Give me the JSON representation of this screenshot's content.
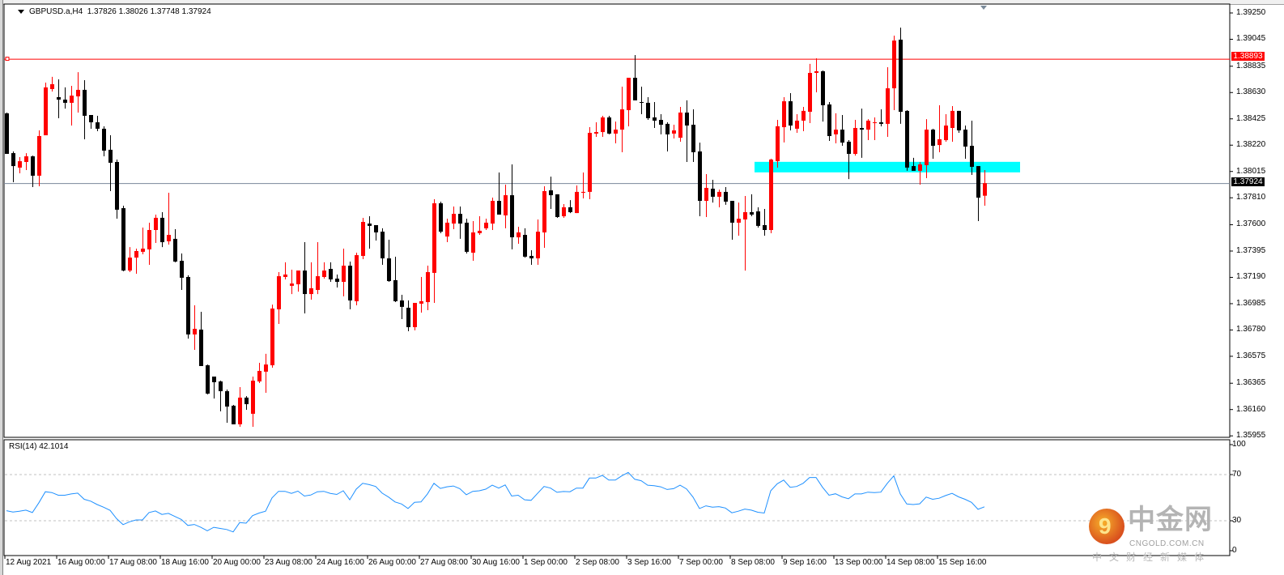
{
  "header": {
    "symbol": "GBPUSD.a,H4",
    "open": "1.37826",
    "high": "1.38026",
    "low": "1.37748",
    "close": "1.37924"
  },
  "rsi": {
    "title": "RSI(14) 42.1014",
    "levels": [
      70,
      30
    ],
    "axis_labels": [
      "100",
      "70",
      "30",
      "0"
    ]
  },
  "price_lines": {
    "resistance": {
      "label": "1.38893",
      "value": 1.38893,
      "color": "#ff0000"
    },
    "bid": {
      "label": "1.37924",
      "value": 1.37924,
      "color": "#000000"
    }
  },
  "zone": {
    "from": 1.38008,
    "to": 1.3809,
    "color": "#00ffff",
    "start_bar": 116,
    "end_bar": 157
  },
  "colors": {
    "bull": "#ff0000",
    "bear": "#000000",
    "rsi": "#1e90ff",
    "grid": "#c0c0c0"
  },
  "logo": {
    "name": "中金网",
    "url": "CNGOLD.COM.CN",
    "tagline": "中文财经新媒体"
  },
  "chart_data": {
    "type": "candlestick",
    "title": "GBPUSD.a,H4",
    "timeframe": "H4",
    "ylim": [
      1.35955,
      1.3925
    ],
    "y_ticks": [
      "1.39250",
      "1.39045",
      "1.38835",
      "1.38630",
      "1.38425",
      "1.38220",
      "1.38015",
      "1.37810",
      "1.37600",
      "1.37395",
      "1.37190",
      "1.36985",
      "1.36780",
      "1.36575",
      "1.36365",
      "1.36160",
      "1.35955"
    ],
    "x_ticks": [
      {
        "bar": 0,
        "label": "12 Aug 2021"
      },
      {
        "bar": 8,
        "label": "16 Aug 00:00"
      },
      {
        "bar": 16,
        "label": "17 Aug 08:00"
      },
      {
        "bar": 24,
        "label": "18 Aug 16:00"
      },
      {
        "bar": 32,
        "label": "20 Aug 00:00"
      },
      {
        "bar": 40,
        "label": "23 Aug 08:00"
      },
      {
        "bar": 48,
        "label": "24 Aug 16:00"
      },
      {
        "bar": 56,
        "label": "26 Aug 00:00"
      },
      {
        "bar": 64,
        "label": "27 Aug 08:00"
      },
      {
        "bar": 72,
        "label": "30 Aug 16:00"
      },
      {
        "bar": 80,
        "label": "1 Sep 00:00"
      },
      {
        "bar": 88,
        "label": "2 Sep 08:00"
      },
      {
        "bar": 96,
        "label": "3 Sep 16:00"
      },
      {
        "bar": 104,
        "label": "7 Sep 00:00"
      },
      {
        "bar": 112,
        "label": "8 Sep 08:00"
      },
      {
        "bar": 120,
        "label": "9 Sep 16:00"
      },
      {
        "bar": 128,
        "label": "13 Sep 00:00"
      },
      {
        "bar": 136,
        "label": "14 Sep 08:00"
      },
      {
        "bar": 144,
        "label": "15 Sep 16:00"
      }
    ],
    "ohlc_fields": [
      "open",
      "high",
      "low",
      "close"
    ],
    "ohlc": [
      [
        1.38468,
        1.38474,
        1.38152,
        1.38152
      ],
      [
        1.38158,
        1.38171,
        1.37931,
        1.38057
      ],
      [
        1.38045,
        1.38127,
        1.38001,
        1.38095
      ],
      [
        1.38089,
        1.38158,
        1.38026,
        1.38133
      ],
      [
        1.38133,
        1.38139,
        1.37893,
        1.37982
      ],
      [
        1.37982,
        1.38335,
        1.379,
        1.38291
      ],
      [
        1.38297,
        1.38707,
        1.38297,
        1.3867
      ],
      [
        1.38657,
        1.38752,
        1.38638,
        1.38695
      ],
      [
        1.38594,
        1.38733,
        1.3843,
        1.38575
      ],
      [
        1.38575,
        1.3867,
        1.38505,
        1.3855
      ],
      [
        1.3855,
        1.38682,
        1.38373,
        1.38606
      ],
      [
        1.386,
        1.38789,
        1.38474,
        1.38651
      ],
      [
        1.38651,
        1.38726,
        1.38266,
        1.38449
      ],
      [
        1.38455,
        1.38455,
        1.38348,
        1.38398
      ],
      [
        1.38398,
        1.38449,
        1.38329,
        1.38348
      ],
      [
        1.38348,
        1.38367,
        1.38133,
        1.38177
      ],
      [
        1.38184,
        1.38297,
        1.37862,
        1.38083
      ],
      [
        1.38089,
        1.38108,
        1.37647,
        1.37717
      ],
      [
        1.37729,
        1.37748,
        1.37237,
        1.37243
      ],
      [
        1.37243,
        1.37426,
        1.37231,
        1.37344
      ],
      [
        1.37344,
        1.37414,
        1.37218,
        1.37395
      ],
      [
        1.37389,
        1.37578,
        1.3737,
        1.37414
      ],
      [
        1.37408,
        1.37616,
        1.37288,
        1.37559
      ],
      [
        1.37559,
        1.37679,
        1.37458,
        1.37654
      ],
      [
        1.37654,
        1.37698,
        1.37426,
        1.37464
      ],
      [
        1.37471,
        1.37849,
        1.37445,
        1.37521
      ],
      [
        1.3749,
        1.37565,
        1.37307,
        1.37313
      ],
      [
        1.37319,
        1.37376,
        1.37092,
        1.37187
      ],
      [
        1.37193,
        1.37206,
        1.36713,
        1.36745
      ],
      [
        1.36745,
        1.36972,
        1.36625,
        1.36789
      ],
      [
        1.36783,
        1.36922,
        1.36499,
        1.36499
      ],
      [
        1.36505,
        1.36511,
        1.36278,
        1.36284
      ],
      [
        1.36417,
        1.36417,
        1.36246,
        1.36373
      ],
      [
        1.36379,
        1.36385,
        1.36146,
        1.36303
      ],
      [
        1.36303,
        1.36316,
        1.36057,
        1.36183
      ],
      [
        1.3619,
        1.36196,
        1.36045,
        1.36045
      ],
      [
        1.36045,
        1.36335,
        1.36026,
        1.36253
      ],
      [
        1.36253,
        1.36265,
        1.36158,
        1.36202
      ],
      [
        1.36127,
        1.36417,
        1.36026,
        1.36385
      ],
      [
        1.36379,
        1.36524,
        1.36366,
        1.36461
      ],
      [
        1.36455,
        1.36594,
        1.36291,
        1.36511
      ],
      [
        1.36505,
        1.36978,
        1.36486,
        1.36947
      ],
      [
        1.36941,
        1.37231,
        1.36827,
        1.37199
      ],
      [
        1.37193,
        1.37307,
        1.37174,
        1.37212
      ],
      [
        1.37124,
        1.3725,
        1.3706,
        1.37142
      ],
      [
        1.37136,
        1.37243,
        1.37079,
        1.37243
      ],
      [
        1.37243,
        1.37464,
        1.36909,
        1.3706
      ],
      [
        1.3706,
        1.37307,
        1.37016,
        1.37105
      ],
      [
        1.37092,
        1.37464,
        1.3706,
        1.37199
      ],
      [
        1.37193,
        1.37307,
        1.3718,
        1.37243
      ],
      [
        1.37256,
        1.37307,
        1.37155,
        1.37174
      ],
      [
        1.3718,
        1.37212,
        1.37111,
        1.37155
      ],
      [
        1.37155,
        1.37414,
        1.37042,
        1.37281
      ],
      [
        1.37281,
        1.37313,
        1.36941,
        1.3701
      ],
      [
        1.37004,
        1.37382,
        1.36972,
        1.37363
      ],
      [
        1.37357,
        1.37654,
        1.37332,
        1.37622
      ],
      [
        1.37609,
        1.37666,
        1.37414,
        1.37591
      ],
      [
        1.37597,
        1.37597,
        1.37477,
        1.3754
      ],
      [
        1.37546,
        1.37572,
        1.37288,
        1.37338
      ],
      [
        1.37338,
        1.37483,
        1.37155,
        1.37161
      ],
      [
        1.37168,
        1.37351,
        1.36997,
        1.37004
      ],
      [
        1.3701,
        1.37054,
        1.36865,
        1.3696
      ],
      [
        1.36953,
        1.3701,
        1.3677,
        1.36802
      ],
      [
        1.36802,
        1.36991,
        1.36777,
        1.36991
      ],
      [
        1.36985,
        1.37193,
        1.36915,
        1.37004
      ],
      [
        1.36997,
        1.37281,
        1.36934,
        1.37231
      ],
      [
        1.37225,
        1.37799,
        1.36991,
        1.37767
      ],
      [
        1.37767,
        1.3778,
        1.37534,
        1.37546
      ],
      [
        1.37508,
        1.37647,
        1.37464,
        1.37616
      ],
      [
        1.37609,
        1.37742,
        1.37565,
        1.37685
      ],
      [
        1.37685,
        1.37742,
        1.3749,
        1.37609
      ],
      [
        1.37616,
        1.37647,
        1.37376,
        1.37389
      ],
      [
        1.37382,
        1.37628,
        1.37319,
        1.3754
      ],
      [
        1.37534,
        1.37666,
        1.37521,
        1.37553
      ],
      [
        1.37572,
        1.37647,
        1.37559,
        1.37616
      ],
      [
        1.37609,
        1.37811,
        1.37559,
        1.37786
      ],
      [
        1.37786,
        1.38007,
        1.37679,
        1.37679
      ],
      [
        1.37673,
        1.37912,
        1.37572,
        1.3783
      ],
      [
        1.3783,
        1.3807,
        1.37408,
        1.37502
      ],
      [
        1.37502,
        1.37584,
        1.37452,
        1.3754
      ],
      [
        1.37521,
        1.37572,
        1.37344,
        1.37351
      ],
      [
        1.37357,
        1.37401,
        1.37288,
        1.37338
      ],
      [
        1.37338,
        1.37641,
        1.37288,
        1.37546
      ],
      [
        1.3754,
        1.379,
        1.3742,
        1.37862
      ],
      [
        1.37868,
        1.37975,
        1.37723,
        1.3783
      ],
      [
        1.37837,
        1.37837,
        1.37654,
        1.3766
      ],
      [
        1.37666,
        1.37761,
        1.37654,
        1.37736
      ],
      [
        1.37736,
        1.37792,
        1.37691,
        1.37698
      ],
      [
        1.37691,
        1.37906,
        1.37691,
        1.37856
      ],
      [
        1.37849,
        1.38007,
        1.37805,
        1.37856
      ],
      [
        1.37856,
        1.3836,
        1.37799,
        1.38316
      ],
      [
        1.3831,
        1.38398,
        1.38285,
        1.38322
      ],
      [
        1.38322,
        1.38449,
        1.38285,
        1.38436
      ],
      [
        1.38436,
        1.38449,
        1.38304,
        1.3831
      ],
      [
        1.3831,
        1.38404,
        1.38234,
        1.38341
      ],
      [
        1.38341,
        1.38676,
        1.38165,
        1.38499
      ],
      [
        1.38493,
        1.38745,
        1.38367,
        1.38745
      ],
      [
        1.38745,
        1.38922,
        1.38569,
        1.38569
      ],
      [
        1.38556,
        1.38676,
        1.38461,
        1.3855
      ],
      [
        1.3855,
        1.38594,
        1.38417,
        1.3843
      ],
      [
        1.38436,
        1.38556,
        1.38354,
        1.38411
      ],
      [
        1.38417,
        1.38461,
        1.38304,
        1.38379
      ],
      [
        1.38386,
        1.38398,
        1.38171,
        1.38304
      ],
      [
        1.3831,
        1.38379,
        1.38272,
        1.38335
      ],
      [
        1.38278,
        1.38518,
        1.38247,
        1.38474
      ],
      [
        1.38474,
        1.38569,
        1.38089,
        1.38373
      ],
      [
        1.38379,
        1.38499,
        1.38089,
        1.38165
      ],
      [
        1.38171,
        1.3824,
        1.37666,
        1.37786
      ],
      [
        1.37786,
        1.37994,
        1.3766,
        1.37887
      ],
      [
        1.37881,
        1.3795,
        1.37773,
        1.37818
      ],
      [
        1.37818,
        1.37874,
        1.37736,
        1.37856
      ],
      [
        1.37856,
        1.37893,
        1.37755,
        1.3778
      ],
      [
        1.37786,
        1.37786,
        1.37483,
        1.37616
      ],
      [
        1.37616,
        1.37773,
        1.37515,
        1.37647
      ],
      [
        1.37641,
        1.37824,
        1.37243,
        1.37698
      ],
      [
        1.37698,
        1.37837,
        1.37666,
        1.37679
      ],
      [
        1.37704,
        1.37736,
        1.37578,
        1.37591
      ],
      [
        1.37597,
        1.37723,
        1.37515,
        1.37559
      ],
      [
        1.37559,
        1.38114,
        1.37534,
        1.38108
      ],
      [
        1.38095,
        1.38417,
        1.38045,
        1.38367
      ],
      [
        1.3836,
        1.38594,
        1.38241,
        1.38562
      ],
      [
        1.38562,
        1.38625,
        1.38335,
        1.38373
      ],
      [
        1.38348,
        1.38461,
        1.38316,
        1.38411
      ],
      [
        1.38411,
        1.38518,
        1.38329,
        1.38487
      ],
      [
        1.3848,
        1.38853,
        1.38392,
        1.38783
      ],
      [
        1.38783,
        1.38897,
        1.38632,
        1.38796
      ],
      [
        1.38796,
        1.38802,
        1.38404,
        1.38531
      ],
      [
        1.38537,
        1.38556,
        1.38253,
        1.38291
      ],
      [
        1.38304,
        1.38468,
        1.38234,
        1.38341
      ],
      [
        1.38341,
        1.38455,
        1.38215,
        1.3824
      ],
      [
        1.38247,
        1.38259,
        1.37956,
        1.38152
      ],
      [
        1.38152,
        1.38417,
        1.38139,
        1.38354
      ],
      [
        1.38354,
        1.38505,
        1.38121,
        1.38341
      ],
      [
        1.38341,
        1.38423,
        1.38259,
        1.38411
      ],
      [
        1.38392,
        1.38436,
        1.38259,
        1.38398
      ],
      [
        1.38398,
        1.38499,
        1.38367,
        1.38386
      ],
      [
        1.38386,
        1.38827,
        1.38285,
        1.38663
      ],
      [
        1.38663,
        1.39073,
        1.38493,
        1.39035
      ],
      [
        1.39042,
        1.39136,
        1.38386,
        1.3848
      ],
      [
        1.38487,
        1.38493,
        1.3802,
        1.38045
      ],
      [
        1.38057,
        1.38121,
        1.3802,
        1.3802
      ],
      [
        1.3802,
        1.38089,
        1.37912,
        1.3807
      ],
      [
        1.38064,
        1.38423,
        1.37963,
        1.38341
      ],
      [
        1.38341,
        1.38348,
        1.38114,
        1.38215
      ],
      [
        1.38221,
        1.38531,
        1.38165,
        1.38266
      ],
      [
        1.38259,
        1.38461,
        1.38247,
        1.38373
      ],
      [
        1.38354,
        1.38524,
        1.38247,
        1.38487
      ],
      [
        1.38487,
        1.38487,
        1.38316,
        1.38335
      ],
      [
        1.38341,
        1.38373,
        1.38114,
        1.38209
      ],
      [
        1.38215,
        1.38411,
        1.37988,
        1.38051
      ],
      [
        1.38057,
        1.38057,
        1.37628,
        1.37811
      ],
      [
        1.37826,
        1.38026,
        1.37748,
        1.37924
      ]
    ],
    "rsi_values": [
      38.7,
      37.6,
      38.3,
      39.2,
      37.1,
      45.6,
      55.1,
      54.4,
      52.1,
      52.1,
      53.2,
      53.9,
      48.6,
      47.0,
      44.0,
      41.7,
      39.0,
      31.8,
      26.6,
      29.1,
      30.7,
      30.7,
      37.1,
      38.5,
      35.5,
      36.4,
      33.7,
      31.1,
      25.9,
      26.8,
      24.3,
      21.3,
      24.3,
      23.3,
      22.4,
      20.3,
      28.4,
      27.9,
      34.4,
      36.7,
      38.3,
      49.8,
      55.5,
      55.5,
      53.7,
      55.7,
      51.4,
      52.3,
      55.1,
      55.5,
      53.7,
      52.8,
      56.0,
      48.2,
      57.4,
      62.4,
      61.3,
      59.7,
      53.9,
      50.5,
      46.3,
      44.5,
      40.6,
      45.9,
      46.3,
      53.2,
      62.4,
      58.0,
      59.4,
      60.1,
      57.8,
      52.5,
      55.5,
      56.0,
      57.4,
      60.8,
      58.3,
      61.0,
      51.4,
      52.1,
      48.2,
      47.7,
      53.7,
      59.7,
      58.3,
      54.6,
      55.3,
      55.1,
      58.3,
      58.3,
      67.0,
      67.0,
      69.3,
      65.2,
      65.2,
      68.9,
      71.8,
      65.9,
      64.7,
      60.8,
      60.3,
      59.4,
      57.1,
      57.8,
      60.8,
      57.6,
      50.5,
      40.6,
      42.9,
      41.7,
      42.2,
      41.0,
      36.9,
      38.3,
      40.1,
      39.2,
      37.4,
      36.7,
      56.0,
      62.0,
      65.2,
      59.0,
      59.7,
      62.4,
      67.5,
      67.5,
      59.0,
      52.1,
      53.4,
      50.7,
      49.1,
      53.2,
      53.2,
      54.8,
      54.4,
      54.8,
      62.4,
      68.9,
      53.2,
      44.5,
      44.0,
      44.7,
      50.5,
      48.6,
      49.5,
      51.8,
      53.7,
      50.7,
      48.6,
      45.9,
      39.9,
      42.1014
    ]
  }
}
